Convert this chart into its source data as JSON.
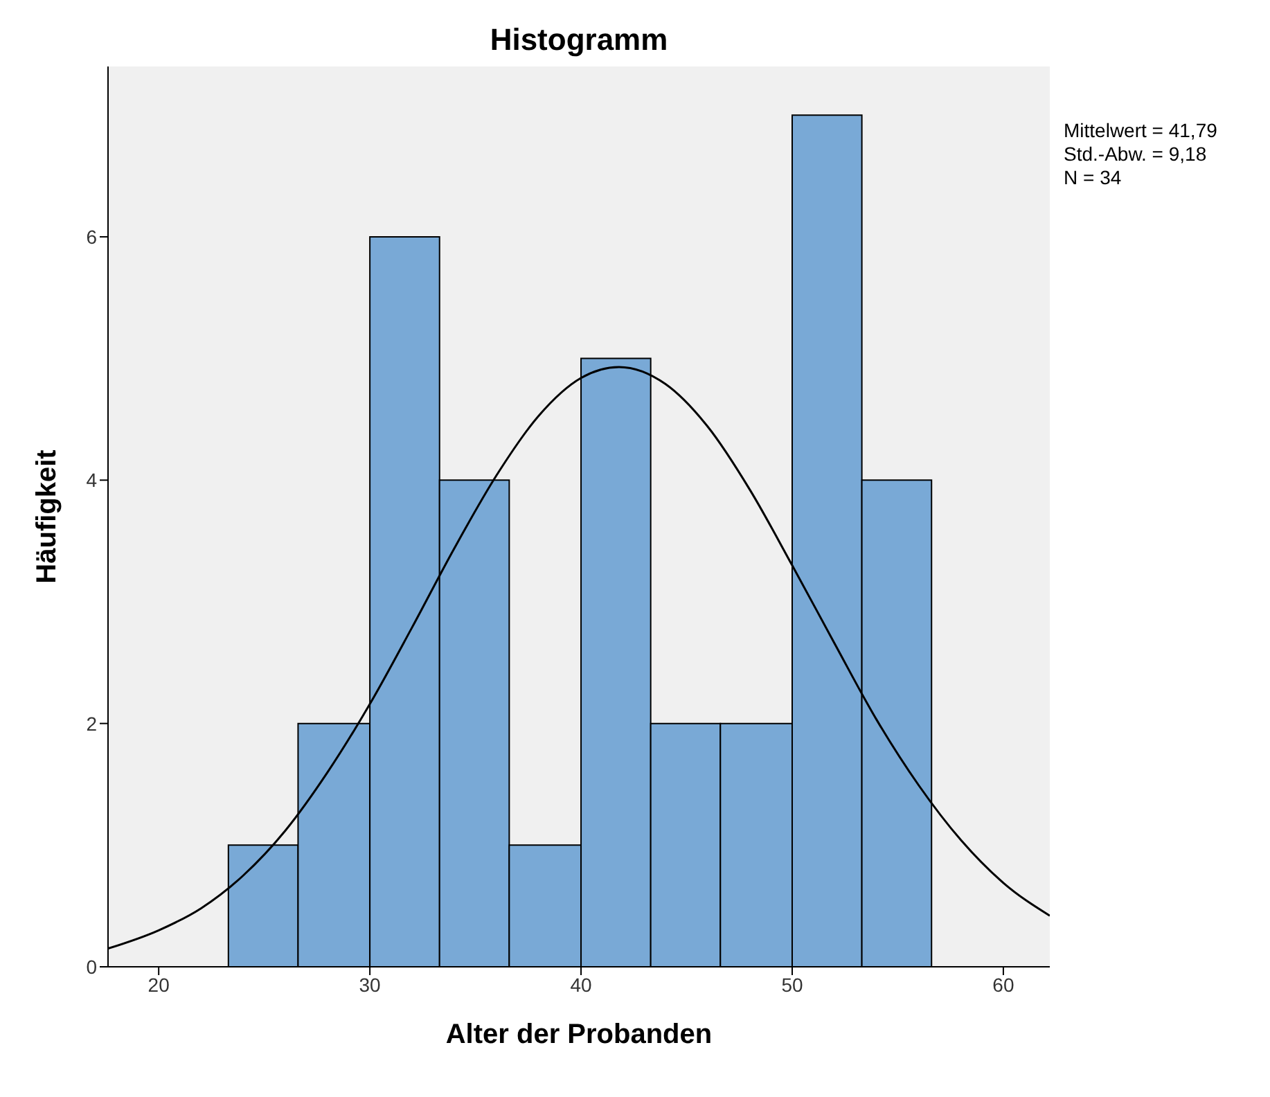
{
  "chart_data": {
    "type": "histogram",
    "title": "Histogramm",
    "xlabel": "Alter der Probanden",
    "ylabel": "Häufigkeit",
    "bins": [
      23.3,
      26.6,
      30,
      33.3,
      36.6,
      40,
      43.3,
      46.6,
      50,
      53.3,
      56.6
    ],
    "values": [
      1,
      2,
      6,
      4,
      1,
      5,
      2,
      2,
      7,
      4
    ],
    "color": "#79a9d6",
    "series": [
      {
        "type": "line",
        "color": "#000000",
        "x": [
          17.6,
          20,
          22,
          24,
          26,
          28,
          30,
          32,
          34,
          36,
          38,
          40,
          41.8,
          44,
          46,
          48,
          50,
          52,
          54,
          56,
          58,
          60,
          62.2
        ],
        "values": [
          0.15,
          0.3,
          0.48,
          0.75,
          1.12,
          1.6,
          2.16,
          2.79,
          3.44,
          4.04,
          4.53,
          4.84,
          4.93,
          4.79,
          4.44,
          3.92,
          3.3,
          2.66,
          2.03,
          1.49,
          1.04,
          0.69,
          0.42
        ]
      }
    ],
    "xlim": [
      17.6,
      62.2
    ],
    "xticks": [
      20,
      30,
      40,
      50,
      60
    ],
    "ylim": [
      0,
      7.4
    ],
    "yticks": [
      0,
      2,
      4,
      6
    ],
    "grid": false,
    "legend": false,
    "marker": "none",
    "line_style": "solid",
    "annotations": [
      "Mittelwert = 41,79",
      "Std.-Abw. = 9,18",
      "N = 34"
    ]
  }
}
